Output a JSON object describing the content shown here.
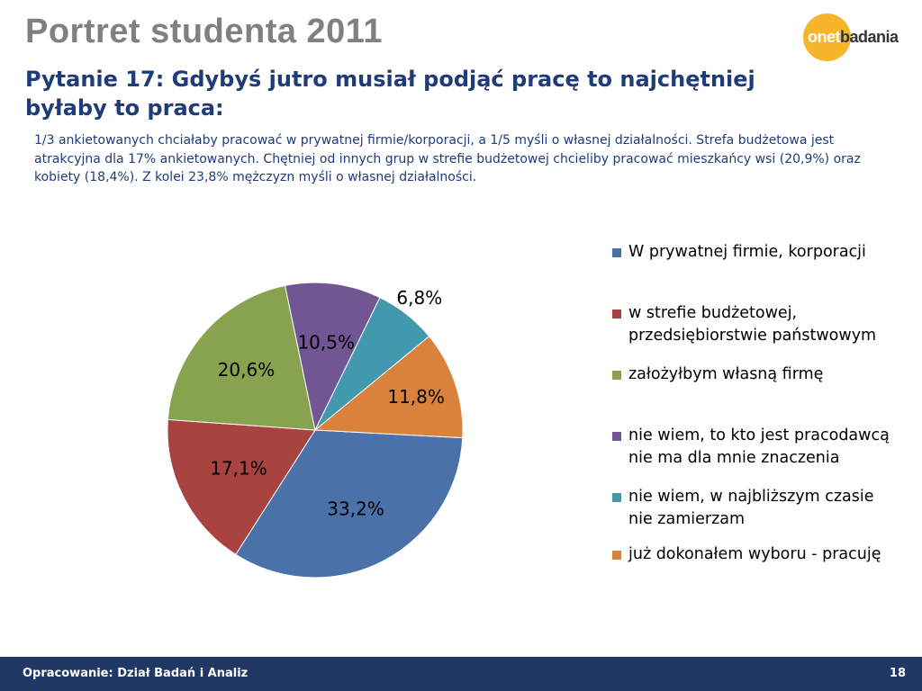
{
  "header": {
    "title": "Portret studenta 2011",
    "logo": {
      "part1": "onet",
      "part2": "badania"
    },
    "subtitle": "Pytanie 17: Gdybyś jutro musiał podjąć pracę to najchętniej byłaby to praca:",
    "description": "1/3 ankietowanych chciałaby pracować w prywatnej firmie/korporacji, a 1/5 myśli o własnej działalności. Strefa budżetowa jest atrakcyjna dla 17% ankietowanych. Chętniej od innych grup w strefie budżetowej chcieliby pracować mieszkańcy wsi (20,9%) oraz kobiety (18,4%). Z kolei 23,8% mężczyzn myśli o własnej działalności."
  },
  "chart_data": {
    "type": "pie",
    "title": "",
    "slices": [
      {
        "label": "W prywatnej firmie, korporacji",
        "value": 33.2,
        "display": "33,2%",
        "color": "#4a72a8"
      },
      {
        "label": "w strefie budżetowej, przedsiębiorstwie państwowym",
        "value": 17.1,
        "display": "17,1%",
        "color": "#a84340"
      },
      {
        "label": "założyłbym własną firmę",
        "value": 20.6,
        "display": "20,6%",
        "color": "#88a34e"
      },
      {
        "label": "nie wiem, to kto jest pracodawcą nie ma dla mnie znaczenia",
        "value": 10.5,
        "display": "10,5%",
        "color": "#715693"
      },
      {
        "label": "nie wiem, w najbliższym czasie nie zamierzam",
        "value": 6.8,
        "display": "6,8%",
        "color": "#4298ad"
      },
      {
        "label": "już dokonałem wyboru - pracuję",
        "value": 11.8,
        "display": "11,8%",
        "color": "#d9823b"
      }
    ],
    "legend_position": "right"
  },
  "footer": {
    "left": "Opracowanie: Dział Badań i Analiz",
    "page_number": "18"
  }
}
